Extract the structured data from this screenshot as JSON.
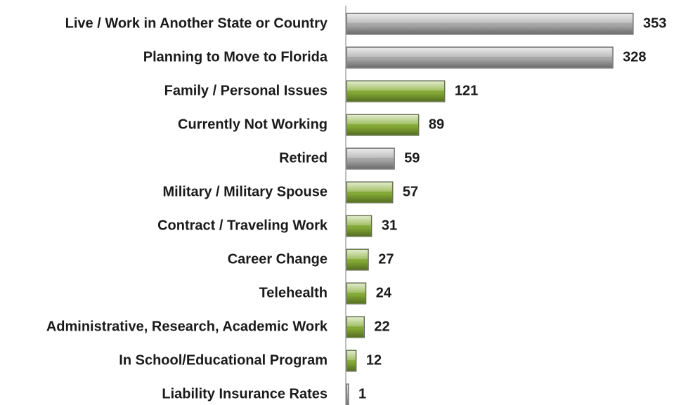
{
  "chart_data": {
    "type": "barh",
    "categories": [
      "Live / Work in Another State or Country",
      "Planning to Move to Florida",
      "Family / Personal Issues",
      "Currently Not Working",
      "Retired",
      "Military / Military Spouse",
      "Contract / Traveling Work",
      "Career Change",
      "Telehealth",
      "Administrative, Research, Academic Work",
      "In School/Educational Program",
      "Liability Insurance Rates"
    ],
    "values": [
      353,
      328,
      121,
      89,
      59,
      57,
      31,
      27,
      24,
      22,
      12,
      1
    ],
    "colors": [
      "#a9a9a9",
      "#a9a9a9",
      "#86ad35",
      "#86ad35",
      "#a9a9a9",
      "#86ad35",
      "#86ad35",
      "#86ad35",
      "#86ad35",
      "#86ad35",
      "#86ad35",
      "#a9a9a9"
    ]
  }
}
